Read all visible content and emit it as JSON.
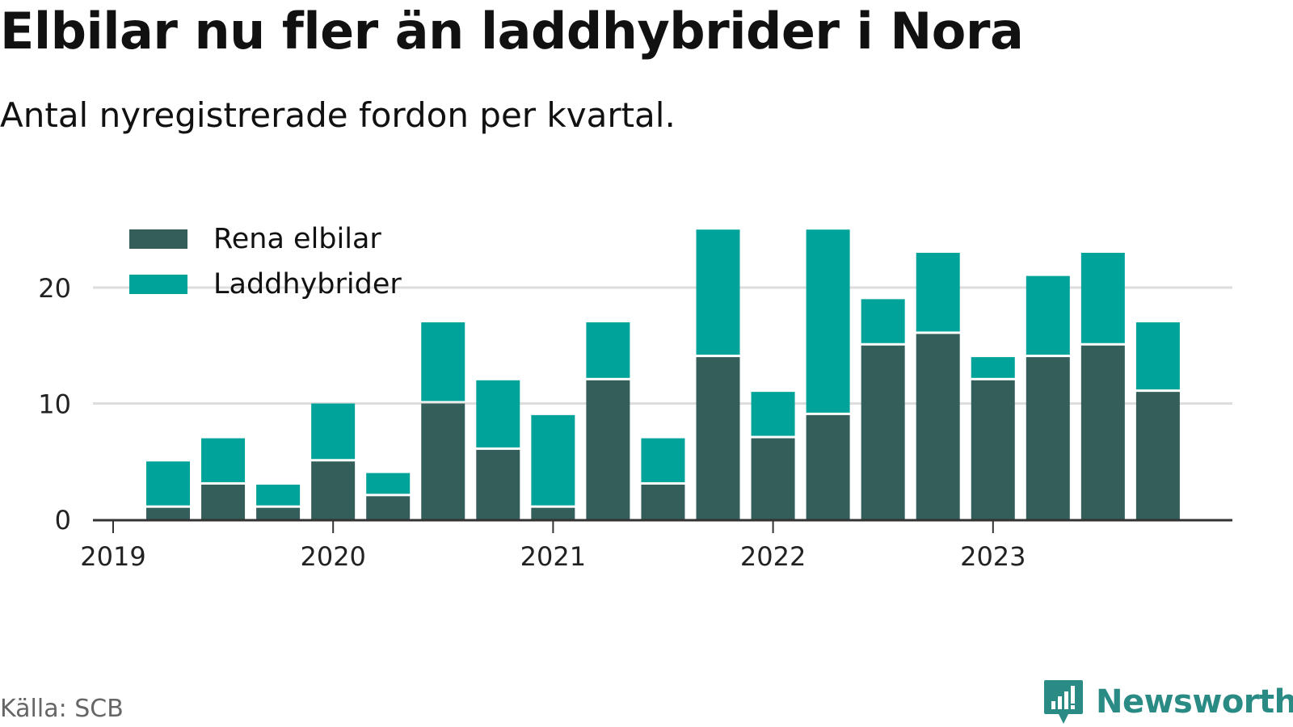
{
  "title": "Elbilar nu fler än laddhybrider i Nora",
  "subtitle": "Antal nyregistrerade fordon per kvartal.",
  "source": "Källa: SCB",
  "brand": "Newsworthy",
  "colors": {
    "elbilar": "#335e5a",
    "laddhybrider": "#00a39a",
    "grid": "#dddddd",
    "axis": "#333333",
    "brand": "#2a8a84"
  },
  "legend": [
    {
      "key": "elbilar",
      "label": "Rena elbilar"
    },
    {
      "key": "laddhybrider",
      "label": "Laddhybrider"
    }
  ],
  "chart_data": {
    "type": "bar",
    "stacked": true,
    "categories": [
      "2019 Q2",
      "2019 Q3",
      "2019 Q4",
      "2020 Q1",
      "2020 Q2",
      "2020 Q3",
      "2020 Q4",
      "2021 Q1",
      "2021 Q2",
      "2021 Q3",
      "2021 Q4",
      "2022 Q1",
      "2022 Q2",
      "2022 Q3",
      "2022 Q4",
      "2023 Q1",
      "2023 Q2",
      "2023 Q3",
      "2023 Q4"
    ],
    "series": [
      {
        "name": "Rena elbilar",
        "key": "elbilar",
        "values": [
          1,
          3,
          1,
          5,
          2,
          10,
          6,
          1,
          12,
          3,
          14,
          7,
          9,
          15,
          16,
          12,
          14,
          15,
          11
        ]
      },
      {
        "name": "Laddhybrider",
        "key": "laddhybrider",
        "values": [
          4,
          4,
          2,
          5,
          2,
          7,
          6,
          8,
          5,
          4,
          11,
          4,
          16,
          4,
          7,
          2,
          7,
          8,
          6
        ]
      }
    ],
    "x_ticks": [
      "2019",
      "2020",
      "2021",
      "2022",
      "2023"
    ],
    "y_ticks": [
      0,
      10,
      20
    ],
    "ylim": [
      0,
      25
    ],
    "grid": true,
    "legend_position": "top-left"
  }
}
